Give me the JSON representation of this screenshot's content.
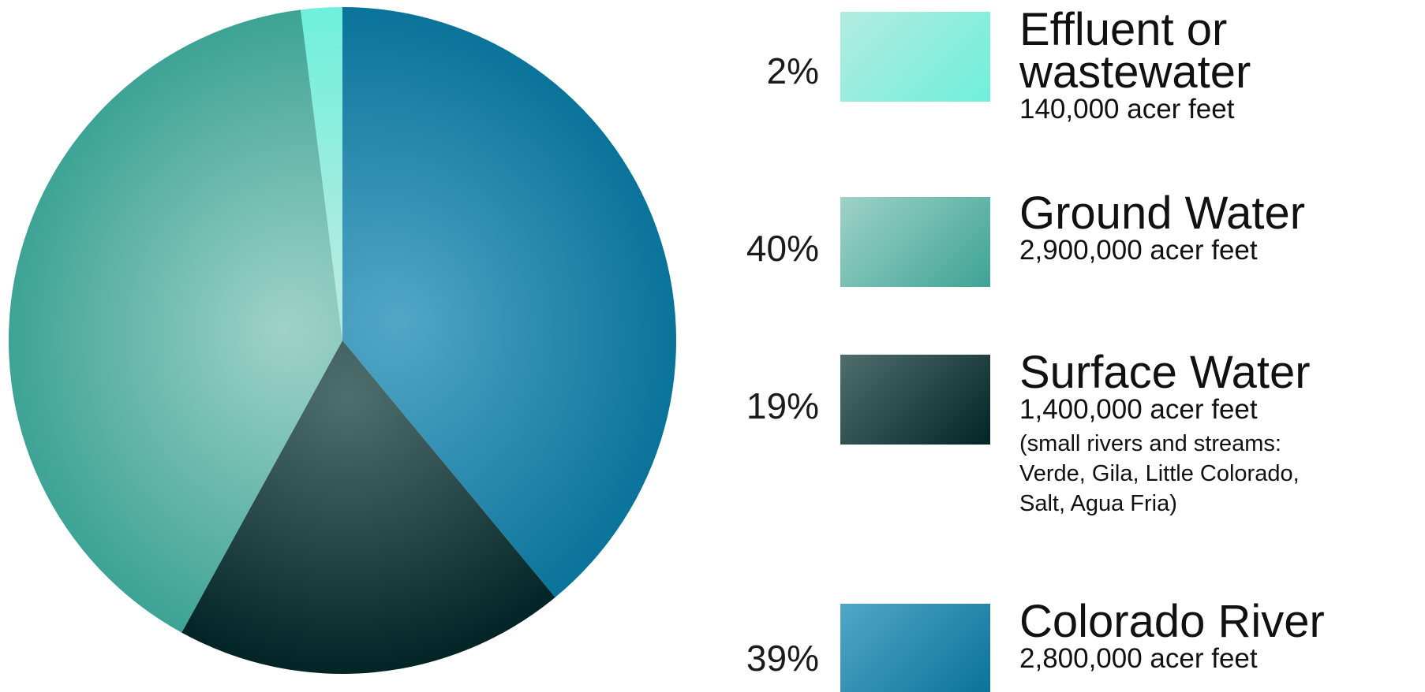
{
  "chart_data": {
    "type": "pie",
    "slices": [
      {
        "label": "Effluent or wastewater",
        "percent_label": "2%",
        "value": 2,
        "amount": "140,000 acer feet",
        "note": "",
        "color_light": "#b4ebe0",
        "color_dark": "#6ef0dc"
      },
      {
        "label": "Ground Water",
        "percent_label": "40%",
        "value": 40,
        "amount": "2,900,000 acer feet",
        "note": "",
        "color_light": "#9fd2c8",
        "color_dark": "#3da394"
      },
      {
        "label": "Surface Water",
        "percent_label": "19%",
        "value": 19,
        "amount": "1,400,000 acer feet",
        "note": "(small rivers and streams:\nVerde, Gila, Little Colorado,\nSalt, Agua Fria)",
        "color_light": "#4f6e6e",
        "color_dark": "#032426"
      },
      {
        "label": "Colorado River",
        "percent_label": "39%",
        "value": 39,
        "amount": "2,800,000 acer feet",
        "note": "",
        "color_light": "#52a6c6",
        "color_dark": "#0a7399"
      }
    ]
  }
}
